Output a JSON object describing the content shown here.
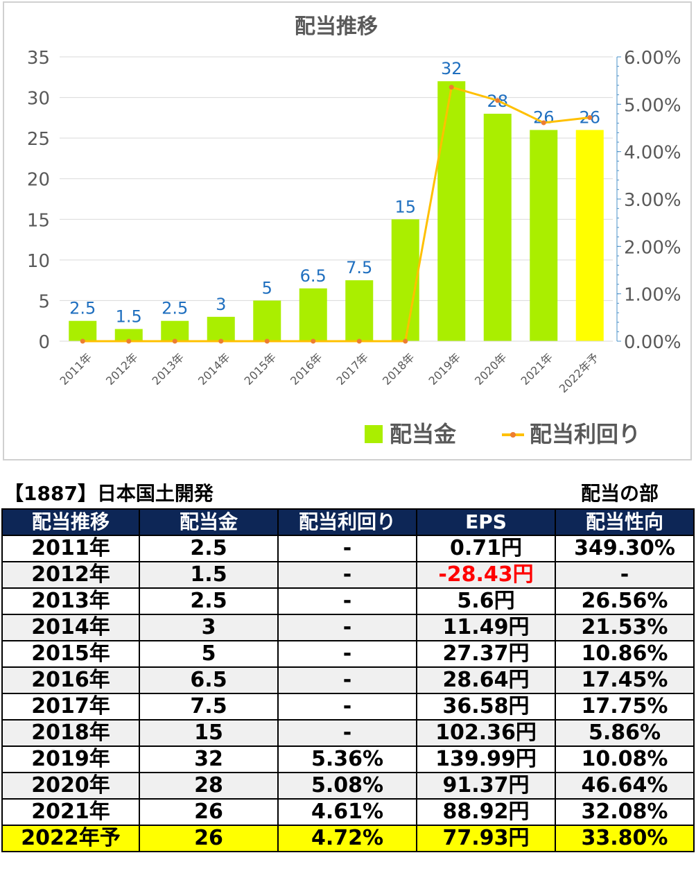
{
  "chart_data": {
    "type": "bar+line",
    "title": "配当推移",
    "categories": [
      "2011年",
      "2012年",
      "2013年",
      "2014年",
      "2015年",
      "2016年",
      "2017年",
      "2018年",
      "2019年",
      "2020年",
      "2021年",
      "2022年予"
    ],
    "series": [
      {
        "name": "配当金",
        "type": "bar",
        "axis": "left",
        "values": [
          2.5,
          1.5,
          2.5,
          3,
          5,
          6.5,
          7.5,
          15,
          32,
          28,
          26,
          26
        ],
        "labels": [
          "2.5",
          "1.5",
          "2.5",
          "3",
          "5",
          "6.5",
          "7.5",
          "15",
          "32",
          "28",
          "26",
          "26"
        ],
        "color": "#aaee00",
        "forecast_color": "#ffff00"
      },
      {
        "name": "配当利回り",
        "type": "line",
        "axis": "right",
        "values": [
          0,
          0,
          0,
          0,
          0,
          0,
          0,
          0,
          5.36,
          5.08,
          4.61,
          4.72
        ],
        "color": "#ffc000",
        "marker_color": "#ed7d31"
      }
    ],
    "y_left": {
      "min": 0,
      "max": 35,
      "ticks": [
        "0",
        "5",
        "10",
        "15",
        "20",
        "25",
        "30",
        "35"
      ]
    },
    "y_right": {
      "min": 0,
      "max": 6,
      "ticks": [
        "0.00%",
        "1.00%",
        "2.00%",
        "3.00%",
        "4.00%",
        "5.00%",
        "6.00%"
      ]
    },
    "legend": {
      "position": "bottom-right"
    },
    "grid": true
  },
  "table": {
    "title": "【1887】日本国土開発",
    "subtitle": "配当の部",
    "headers": [
      "配当推移",
      "配当金",
      "配当利回り",
      "EPS",
      "配当性向"
    ],
    "rows": [
      [
        "2011年",
        "2.5",
        "-",
        "0.71円",
        "349.30%"
      ],
      [
        "2012年",
        "1.5",
        "-",
        "-28.43円",
        "-"
      ],
      [
        "2013年",
        "2.5",
        "-",
        "5.6円",
        "26.56%"
      ],
      [
        "2014年",
        "3",
        "-",
        "11.49円",
        "21.53%"
      ],
      [
        "2015年",
        "5",
        "-",
        "27.37円",
        "10.86%"
      ],
      [
        "2016年",
        "6.5",
        "-",
        "28.64円",
        "17.45%"
      ],
      [
        "2017年",
        "7.5",
        "-",
        "36.58円",
        "17.75%"
      ],
      [
        "2018年",
        "15",
        "-",
        "102.36円",
        "5.86%"
      ],
      [
        "2019年",
        "32",
        "5.36%",
        "139.99円",
        "10.08%"
      ],
      [
        "2020年",
        "28",
        "5.08%",
        "91.37円",
        "46.64%"
      ],
      [
        "2021年",
        "26",
        "4.61%",
        "88.92円",
        "32.08%"
      ],
      [
        "2022年予",
        "26",
        "4.72%",
        "77.93円",
        "33.80%"
      ]
    ],
    "negative_color": "#ff0000",
    "header_color": "#0d2656",
    "forecast_row_color": "#ffff00"
  }
}
